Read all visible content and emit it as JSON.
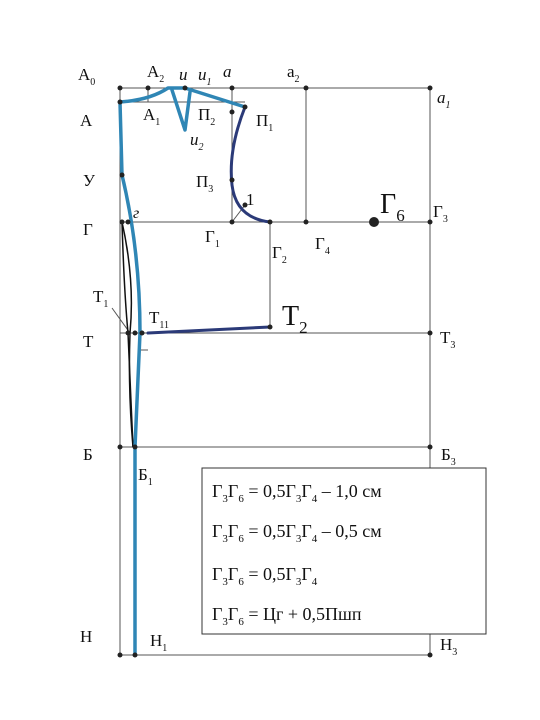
{
  "labels": [
    {
      "text": "А",
      "sub": "0"
    },
    {
      "text": "А",
      "sub": "2"
    },
    {
      "text": "u"
    },
    {
      "text": "u",
      "sub": "1"
    },
    {
      "text": "a"
    },
    {
      "text": "a",
      "sub": "2"
    },
    {
      "text": "a",
      "sub": "1"
    },
    {
      "text": "А"
    },
    {
      "text": "А",
      "sub": "1"
    },
    {
      "text": "П",
      "sub": "2"
    },
    {
      "text": "П",
      "sub": "1"
    },
    {
      "text": "u",
      "sub": "2"
    },
    {
      "text": "У"
    },
    {
      "text": "П",
      "sub": "3"
    },
    {
      "text": "1"
    },
    {
      "text": "Г"
    },
    {
      "text": "г"
    },
    {
      "text": "Г",
      "sub": "1"
    },
    {
      "text": "Г",
      "sub": "2"
    },
    {
      "text": "Г",
      "sub": "4"
    },
    {
      "text": "Г",
      "sub": "6"
    },
    {
      "text": "Г",
      "sub": "3"
    },
    {
      "text": "Т",
      "sub": "1"
    },
    {
      "text": "Т",
      "sub": "11"
    },
    {
      "text": "Т",
      "sub": "2"
    },
    {
      "text": "Т"
    },
    {
      "text": "Т",
      "sub": "3"
    },
    {
      "text": "Б"
    },
    {
      "text": "Б",
      "sub": "3"
    },
    {
      "text": "Б",
      "sub": "1"
    },
    {
      "text": "Н"
    },
    {
      "text": "Н",
      "sub": "1"
    },
    {
      "text": "Н",
      "sub": "3"
    }
  ],
  "formulas": [
    [
      {
        "text": "Г"
      },
      {
        "sub": "3"
      },
      {
        "text": "Г"
      },
      {
        "sub": "6"
      },
      {
        "text": " = 0,5Г"
      },
      {
        "sub": "3"
      },
      {
        "text": "Г"
      },
      {
        "sub": "4"
      },
      {
        "text": " – 1,0 см"
      }
    ],
    [
      {
        "text": "Г"
      },
      {
        "sub": "3"
      },
      {
        "text": "Г"
      },
      {
        "sub": "6"
      },
      {
        "text": " = 0,5Г"
      },
      {
        "sub": "3"
      },
      {
        "text": "Г"
      },
      {
        "sub": "4"
      },
      {
        "text": " – 0,5 см"
      }
    ],
    [
      {
        "text": "Г"
      },
      {
        "sub": "3"
      },
      {
        "text": "Г"
      },
      {
        "sub": "6"
      },
      {
        "text": " = 0,5Г"
      },
      {
        "sub": "3"
      },
      {
        "text": "Г"
      },
      {
        "sub": "4"
      }
    ],
    [
      {
        "text": "Г"
      },
      {
        "sub": "3"
      },
      {
        "text": "Г"
      },
      {
        "sub": "6"
      },
      {
        "text": " = Цг + 0,5Пшп"
      }
    ]
  ]
}
